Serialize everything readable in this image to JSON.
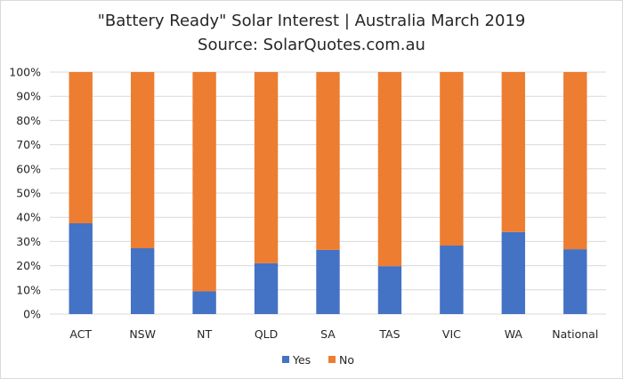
{
  "chart_data": {
    "type": "bar",
    "stacked": true,
    "percent_stacked": true,
    "title": "\"Battery Ready\" Solar Interest | Australia March 2019",
    "subtitle": "Source: SolarQuotes.com.au",
    "categories": [
      "ACT",
      "NSW",
      "NT",
      "QLD",
      "SA",
      "TAS",
      "VIC",
      "WA",
      "National"
    ],
    "series": [
      {
        "name": "Yes",
        "color": "#4472C4",
        "values": [
          37.5,
          27.2,
          9.4,
          21.0,
          26.5,
          19.8,
          28.3,
          33.9,
          26.8
        ]
      },
      {
        "name": "No",
        "color": "#ED7D31",
        "values": [
          62.5,
          72.8,
          90.6,
          79.0,
          73.5,
          80.2,
          71.7,
          66.1,
          73.2
        ]
      }
    ],
    "ylim": [
      0,
      100
    ],
    "yticks": [
      "0%",
      "10%",
      "20%",
      "30%",
      "40%",
      "50%",
      "60%",
      "70%",
      "80%",
      "90%",
      "100%"
    ],
    "grid": true,
    "legend_position": "bottom"
  }
}
